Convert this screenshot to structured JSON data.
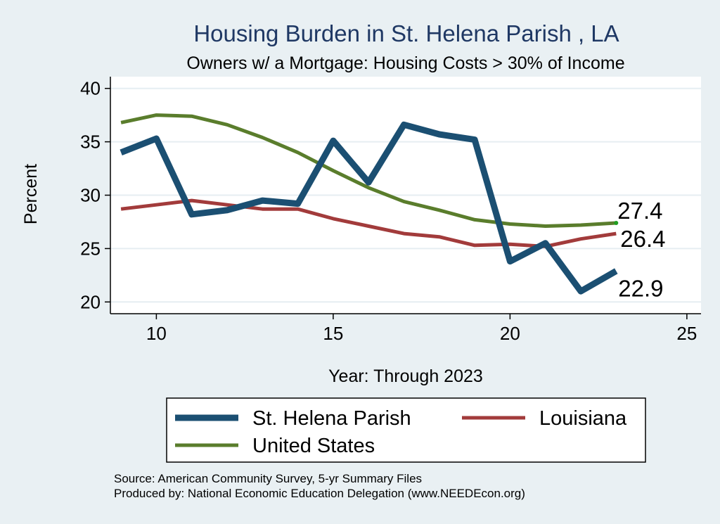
{
  "chart_data": {
    "type": "line",
    "title": "Housing Burden in St. Helena Parish , LA",
    "subtitle": "Owners w/ a Mortgage: Housing Costs > 30% of Income",
    "xlabel": "Year: Through 2023",
    "ylabel": "Percent",
    "xlim": [
      8.7,
      25.4
    ],
    "ylim": [
      18.9,
      41.1
    ],
    "xticks": [
      10,
      15,
      20,
      25
    ],
    "yticks": [
      20,
      25,
      30,
      35,
      40
    ],
    "grid": true,
    "legend_position": "bottom",
    "series": [
      {
        "name": "St. Helena Parish",
        "color": "#1b4f72",
        "width": "thick",
        "x": [
          9,
          10,
          11,
          12,
          13,
          14,
          15,
          16,
          17,
          18,
          19,
          20,
          21,
          22,
          23
        ],
        "values": [
          34.0,
          35.3,
          28.2,
          28.6,
          29.5,
          29.2,
          35.1,
          31.2,
          36.6,
          35.7,
          35.2,
          23.8,
          25.5,
          21.0,
          22.9
        ],
        "end_label": "22.9"
      },
      {
        "name": "Louisiana",
        "color": "#a23b3b",
        "width": "thin",
        "x": [
          9,
          10,
          11,
          12,
          13,
          14,
          15,
          16,
          17,
          18,
          19,
          20,
          21,
          22,
          23
        ],
        "values": [
          28.7,
          29.1,
          29.5,
          29.1,
          28.7,
          28.7,
          27.8,
          27.1,
          26.4,
          26.1,
          25.3,
          25.4,
          25.2,
          25.9,
          26.4
        ],
        "end_label": "26.4"
      },
      {
        "name": "United States",
        "color": "#5a7d2c",
        "width": "thin",
        "x": [
          9,
          10,
          11,
          12,
          13,
          14,
          15,
          16,
          17,
          18,
          19,
          20,
          21,
          22,
          23
        ],
        "values": [
          36.8,
          37.5,
          37.4,
          36.6,
          35.4,
          34.0,
          32.3,
          30.7,
          29.4,
          28.6,
          27.7,
          27.3,
          27.1,
          27.2,
          27.4
        ],
        "end_label": "27.4"
      }
    ]
  },
  "footer": {
    "source": "Source: American Community Survey, 5-yr Summary Files",
    "produced_by": "Produced by: National Economic Education Delegation (www.NEEDEcon.org)"
  }
}
